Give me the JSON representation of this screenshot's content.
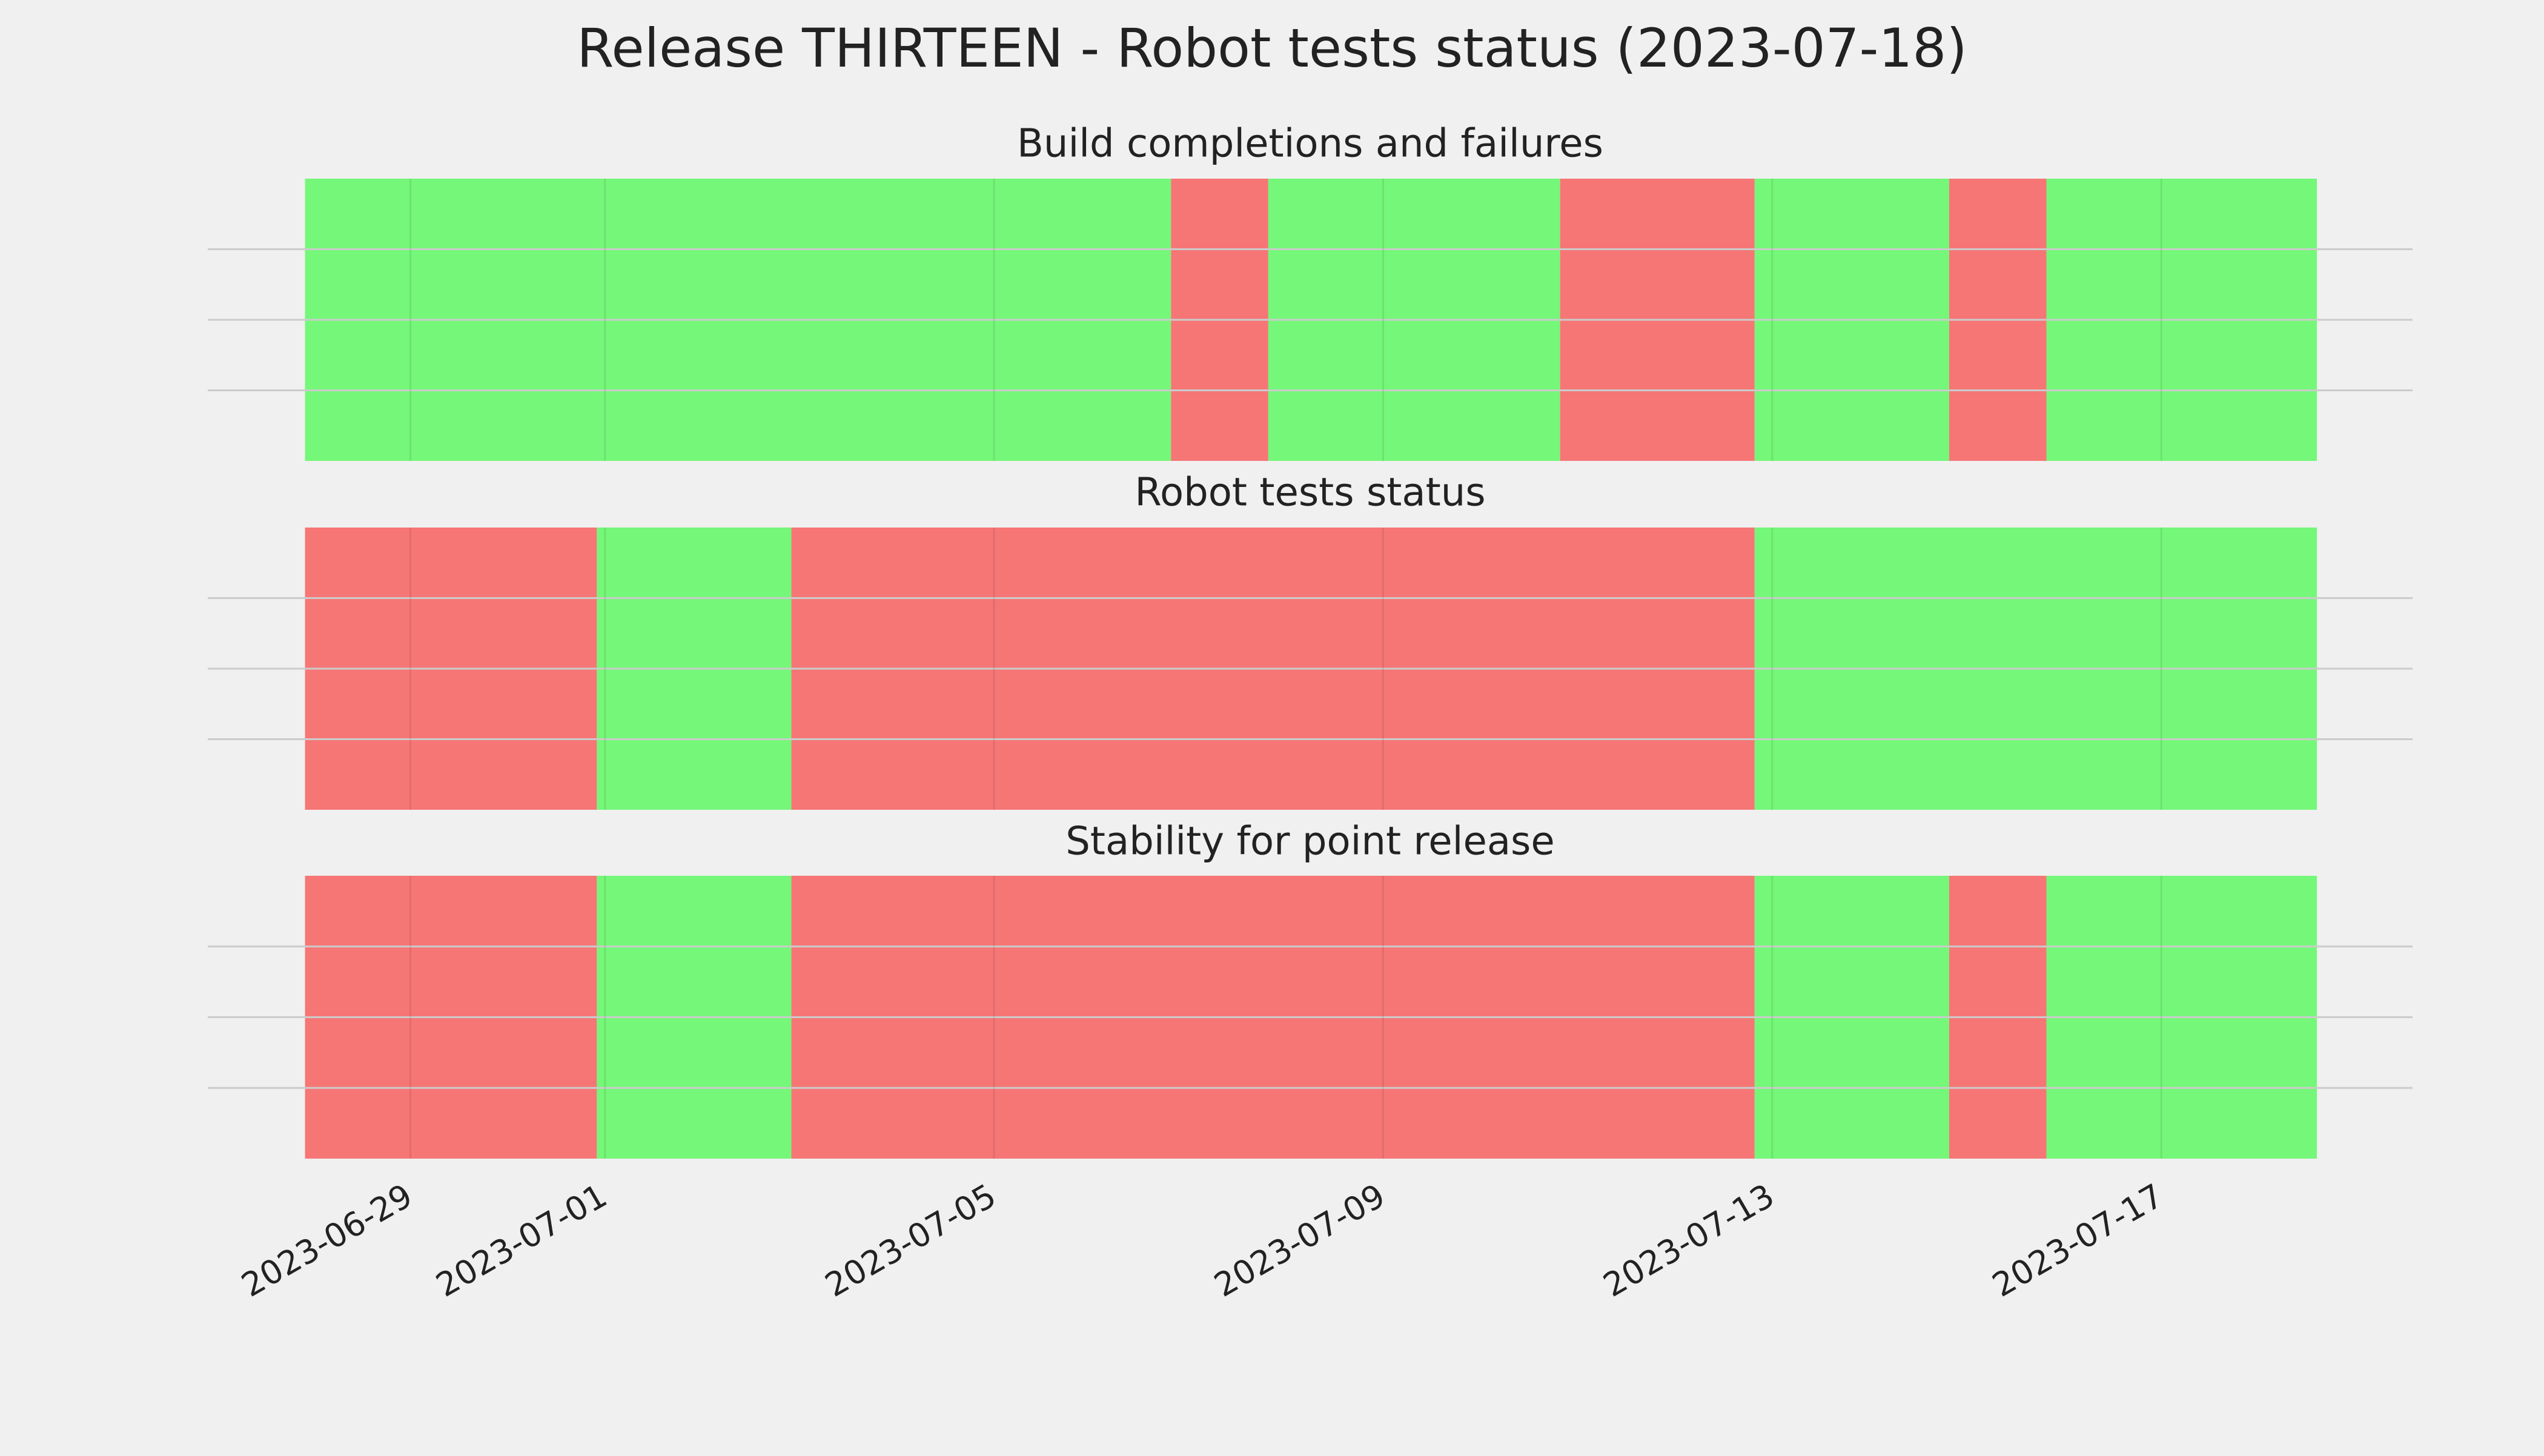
{
  "title": "Release THIRTEEN - Robot tests status (2023-07-18)",
  "shared_x": {
    "xlim": [
      "2023-06-26T22:00",
      "2023-07-19T14:00"
    ],
    "xticks": [
      "2023-06-29",
      "2023-07-01",
      "2023-07-05",
      "2023-07-09",
      "2023-07-13",
      "2023-07-17"
    ]
  },
  "chart_data": [
    {
      "type": "timeline",
      "title": "Build completions and failures",
      "ylim": [
        0,
        1
      ],
      "yticks": [
        0.25,
        0.5,
        0.75
      ],
      "grid": true,
      "segments": [
        {
          "start": "2023-06-27T22:00",
          "end": "2023-07-06T19:40",
          "color": "#75f779"
        },
        {
          "start": "2023-07-06T19:40",
          "end": "2023-07-07T19:40",
          "color": "#f67676"
        },
        {
          "start": "2023-07-07T19:40",
          "end": "2023-07-10T19:40",
          "color": "#75f779"
        },
        {
          "start": "2023-07-10T19:40",
          "end": "2023-07-12T19:40",
          "color": "#f67676"
        },
        {
          "start": "2023-07-12T19:40",
          "end": "2023-07-14T19:40",
          "color": "#75f779"
        },
        {
          "start": "2023-07-14T19:40",
          "end": "2023-07-15T19:40",
          "color": "#f67676"
        },
        {
          "start": "2023-07-15T19:40",
          "end": "2023-07-18T14:24",
          "color": "#75f779"
        }
      ]
    },
    {
      "type": "timeline",
      "title": "Robot tests status",
      "ylim": [
        0,
        1
      ],
      "yticks": [
        0.25,
        0.5,
        0.75
      ],
      "grid": true,
      "segments": [
        {
          "start": "2023-06-27T22:00",
          "end": "2023-06-30T22:00",
          "color": "#f67676"
        },
        {
          "start": "2023-06-30T22:00",
          "end": "2023-07-02T22:00",
          "color": "#75f779"
        },
        {
          "start": "2023-07-02T22:00",
          "end": "2023-07-12T19:40",
          "color": "#f67676"
        },
        {
          "start": "2023-07-12T19:40",
          "end": "2023-07-18T14:24",
          "color": "#75f779"
        }
      ]
    },
    {
      "type": "timeline",
      "title": "Stability for point release",
      "ylim": [
        0,
        1
      ],
      "yticks": [
        0.25,
        0.5,
        0.75
      ],
      "grid": true,
      "segments": [
        {
          "start": "2023-06-27T22:00",
          "end": "2023-06-30T22:00",
          "color": "#f67676"
        },
        {
          "start": "2023-06-30T22:00",
          "end": "2023-07-02T22:00",
          "color": "#75f779"
        },
        {
          "start": "2023-07-02T22:00",
          "end": "2023-07-12T19:40",
          "color": "#f67676"
        },
        {
          "start": "2023-07-12T19:40",
          "end": "2023-07-14T19:40",
          "color": "#75f779"
        },
        {
          "start": "2023-07-14T19:40",
          "end": "2023-07-15T19:40",
          "color": "#f67676"
        },
        {
          "start": "2023-07-15T19:40",
          "end": "2023-07-18T14:24",
          "color": "#75f779"
        }
      ]
    }
  ]
}
